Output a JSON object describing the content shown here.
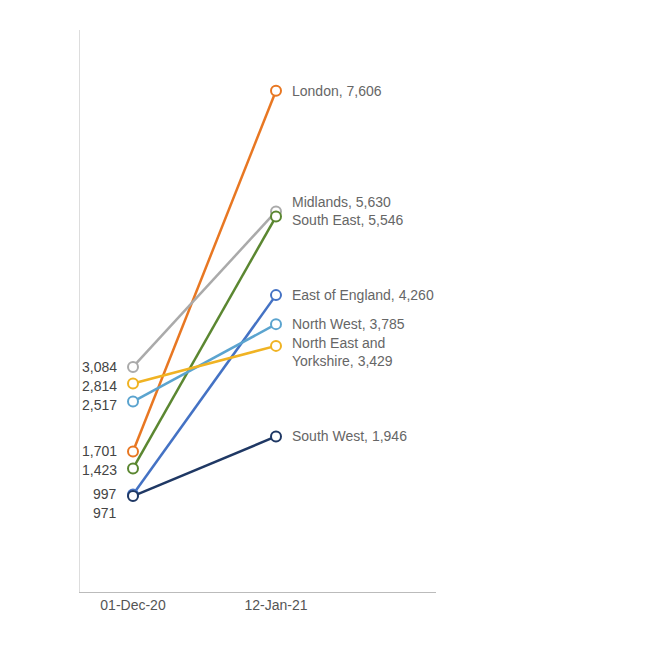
{
  "chart_data": {
    "type": "line",
    "categories": [
      "01-Dec-20",
      "12-Jan-21"
    ],
    "series": [
      {
        "name": "London, 7,606",
        "color": "#E87722",
        "values": [
          1701,
          7606
        ]
      },
      {
        "name": "Midlands, 5,630",
        "color": "#AAAAAA",
        "values": [
          3084,
          5630
        ]
      },
      {
        "name": "South East, 5,546",
        "color": "#5B8731",
        "values": [
          1423,
          5546
        ]
      },
      {
        "name": "East of England, 4,260",
        "color": "#4472C4",
        "values": [
          997,
          4260
        ]
      },
      {
        "name": "North West, 3,785",
        "color": "#5BA4CF",
        "values": [
          2517,
          3785
        ]
      },
      {
        "name": "North East and\nYorkshire, 3,429",
        "color": "#F0B323",
        "values": [
          2814,
          3429
        ]
      },
      {
        "name": "South West, 1,946",
        "color": "#1F3864",
        "values": [
          971,
          1946
        ]
      }
    ],
    "annotations": [
      {
        "x": "01-Dec-20",
        "y": 3084,
        "text": "3,084"
      },
      {
        "x": "01-Dec-20",
        "y": 2814,
        "text": "2,814"
      },
      {
        "x": "01-Dec-20",
        "y": 2517,
        "text": "2,517"
      },
      {
        "x": "01-Dec-20",
        "y": 1701,
        "text": "1,701"
      },
      {
        "x": "01-Dec-20",
        "y": 1423,
        "text": "1,423"
      },
      {
        "x": "01-Dec-20",
        "y": 997,
        "text": "997"
      },
      {
        "x": "01-Dec-20",
        "y": 971,
        "text": "971"
      },
      {
        "x": "12-Jan-21",
        "y": 7606,
        "text": "London, 7,606"
      },
      {
        "x": "12-Jan-21",
        "y": 5630,
        "text": "Midlands, 5,630\nSouth East, 5,546"
      },
      {
        "x": "12-Jan-21",
        "y": 4260,
        "text": "East of England, 4,260"
      },
      {
        "x": "12-Jan-21",
        "y": 3785,
        "text": "North West, 3,785"
      },
      {
        "x": "12-Jan-21",
        "y": 3429,
        "text": "North East and\nYorkshire, 3,429"
      },
      {
        "x": "12-Jan-21",
        "y": 1946,
        "text": "South West, 1,946"
      }
    ],
    "ylim": [
      -600,
      8600
    ],
    "tick_labels": "x",
    "grid": false,
    "marker": "circle",
    "line_style": "solid"
  }
}
